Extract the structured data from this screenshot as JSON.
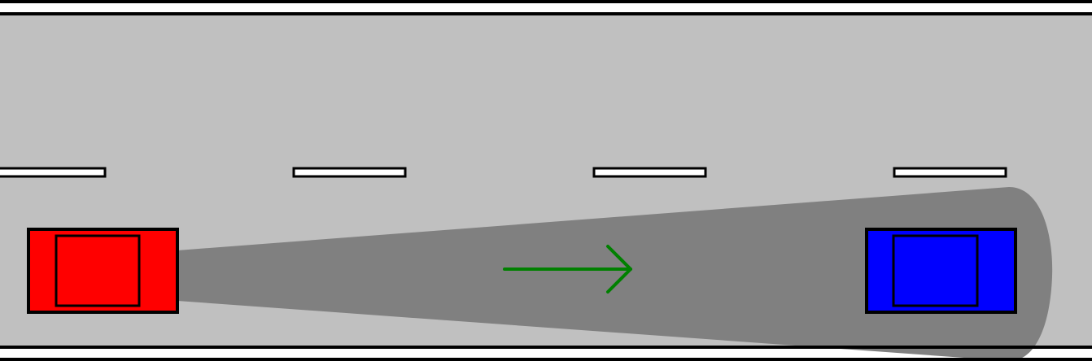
{
  "scene": {
    "road_color": "#c0c0c0",
    "edge_line_color": "#000000",
    "lane_marking_fill": "#ffffff",
    "lane_marking_stroke": "#000000",
    "lane_marking_count": 4,
    "sensor_beam_color": "#808080",
    "direction_arrow_color": "#008000",
    "ego_vehicle": {
      "name": "ego-car",
      "body_color": "#ff0000",
      "outline_color": "#000000"
    },
    "lead_vehicle": {
      "name": "lead-car",
      "body_color": "#0000ff",
      "outline_color": "#000000"
    }
  }
}
